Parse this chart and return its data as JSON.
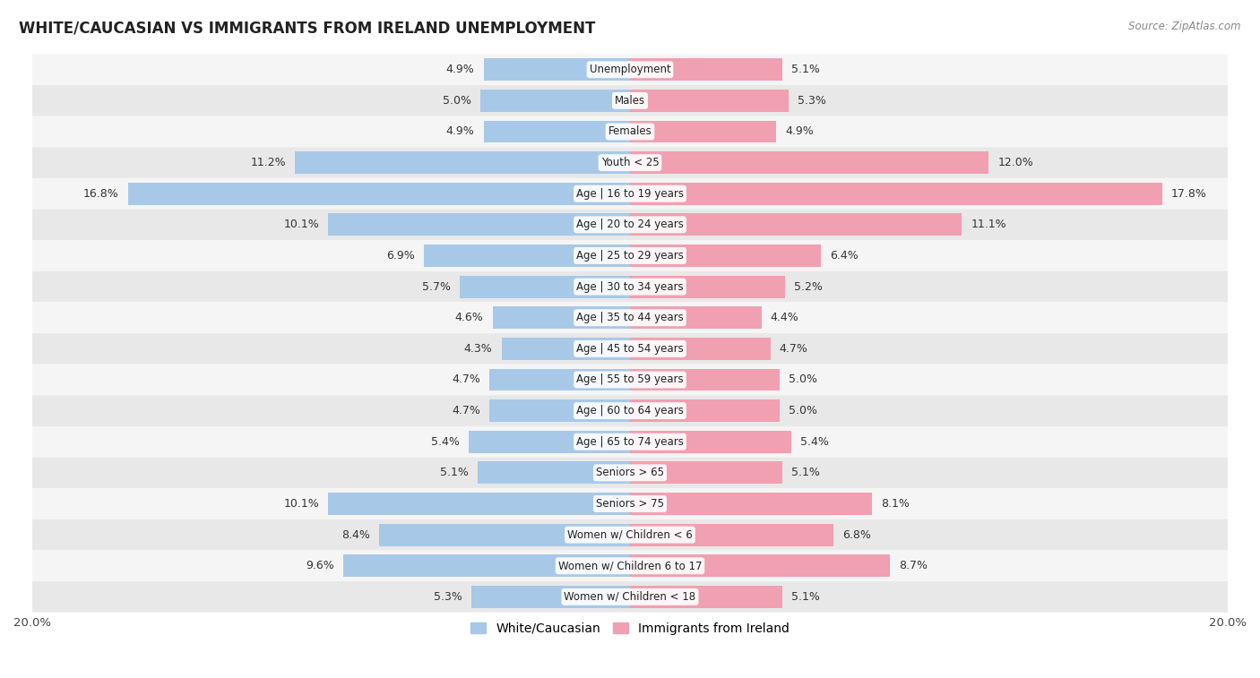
{
  "title": "WHITE/CAUCASIAN VS IMMIGRANTS FROM IRELAND UNEMPLOYMENT",
  "source": "Source: ZipAtlas.com",
  "categories": [
    "Unemployment",
    "Males",
    "Females",
    "Youth < 25",
    "Age | 16 to 19 years",
    "Age | 20 to 24 years",
    "Age | 25 to 29 years",
    "Age | 30 to 34 years",
    "Age | 35 to 44 years",
    "Age | 45 to 54 years",
    "Age | 55 to 59 years",
    "Age | 60 to 64 years",
    "Age | 65 to 74 years",
    "Seniors > 65",
    "Seniors > 75",
    "Women w/ Children < 6",
    "Women w/ Children 6 to 17",
    "Women w/ Children < 18"
  ],
  "white_values": [
    4.9,
    5.0,
    4.9,
    11.2,
    16.8,
    10.1,
    6.9,
    5.7,
    4.6,
    4.3,
    4.7,
    4.7,
    5.4,
    5.1,
    10.1,
    8.4,
    9.6,
    5.3
  ],
  "immigrant_values": [
    5.1,
    5.3,
    4.9,
    12.0,
    17.8,
    11.1,
    6.4,
    5.2,
    4.4,
    4.7,
    5.0,
    5.0,
    5.4,
    5.1,
    8.1,
    6.8,
    8.7,
    5.1
  ],
  "white_color": "#a8c8e8",
  "immigrant_color": "#f0a0b0",
  "white_label": "White/Caucasian",
  "immigrant_label": "Immigrants from Ireland",
  "axis_max": 20.0,
  "row_bg_colors": [
    "#f5f5f5",
    "#e8e8e8"
  ]
}
